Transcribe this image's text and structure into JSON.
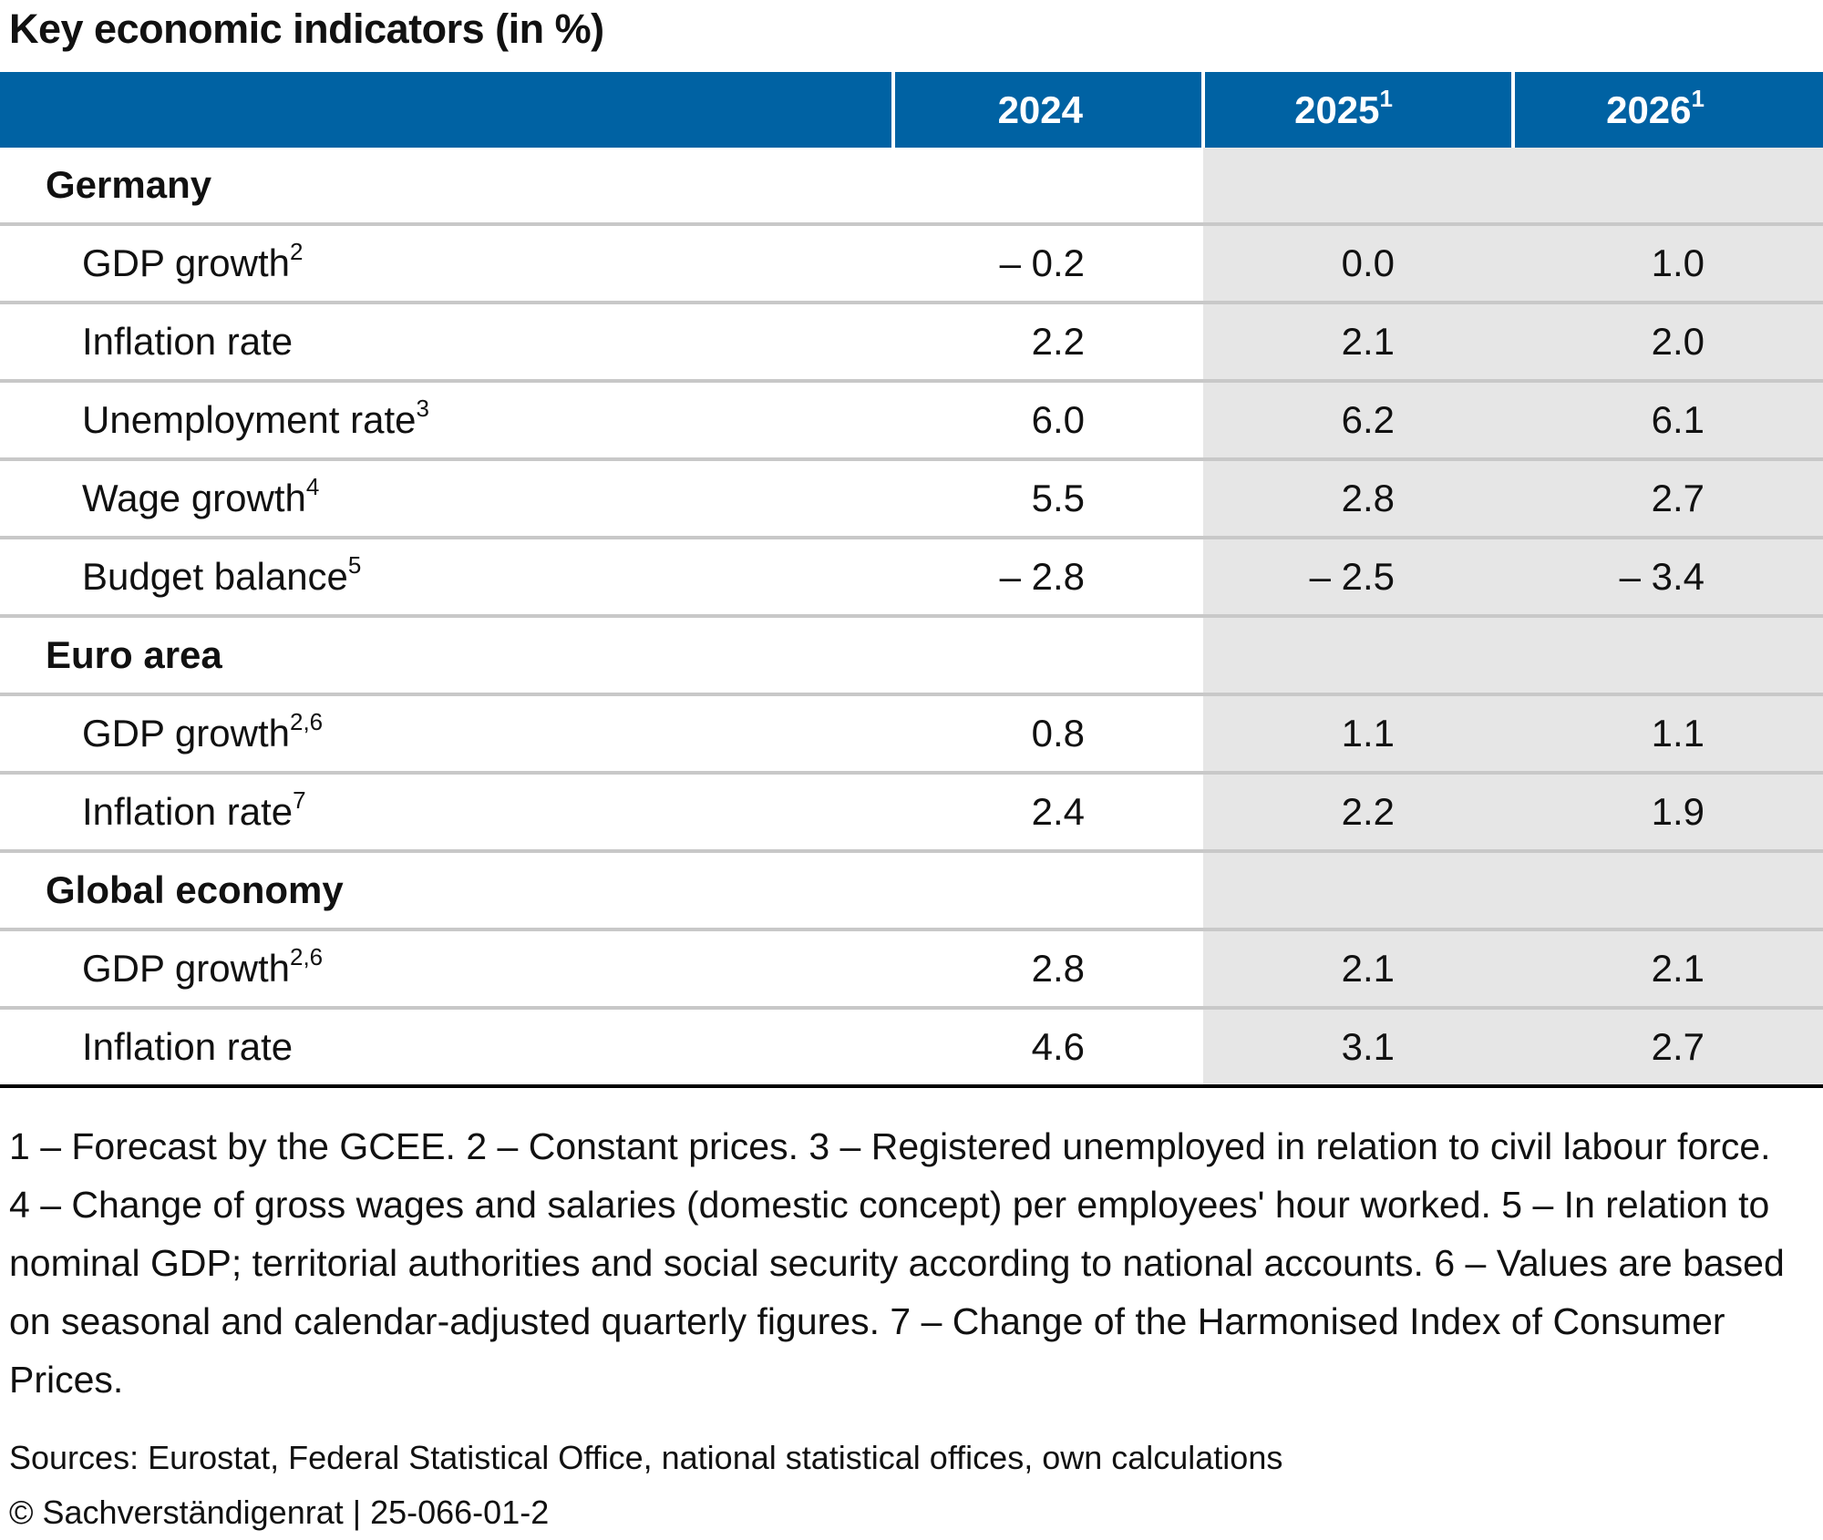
{
  "title": "Key economic indicators (in %)",
  "colors": {
    "header_bg": "#0062a3",
    "forecast_shade": "#e6e6e6"
  },
  "columns": [
    {
      "label": "2024",
      "sup": ""
    },
    {
      "label": "2025",
      "sup": "1"
    },
    {
      "label": "2026",
      "sup": "1"
    }
  ],
  "rows": [
    {
      "type": "group",
      "label": "Germany"
    },
    {
      "type": "item",
      "label": "GDP growth",
      "sup": "2",
      "values": [
        "– 0.2",
        "0.0",
        "1.0"
      ]
    },
    {
      "type": "item",
      "label": "Inflation rate",
      "sup": "",
      "values": [
        "2.2",
        "2.1",
        "2.0"
      ]
    },
    {
      "type": "item",
      "label": "Unemployment rate",
      "sup": "3",
      "values": [
        "6.0",
        "6.2",
        "6.1"
      ]
    },
    {
      "type": "item",
      "label": "Wage growth",
      "sup": "4",
      "values": [
        "5.5",
        "2.8",
        "2.7"
      ]
    },
    {
      "type": "item",
      "label": "Budget balance",
      "sup": "5",
      "values": [
        "– 2.8",
        "– 2.5",
        "– 3.4"
      ]
    },
    {
      "type": "group",
      "label": "Euro area"
    },
    {
      "type": "item",
      "label": "GDP growth",
      "sup": "2,6",
      "values": [
        "0.8",
        "1.1",
        "1.1"
      ]
    },
    {
      "type": "item",
      "label": "Inflation rate",
      "sup": "7",
      "values": [
        "2.4",
        "2.2",
        "1.9"
      ]
    },
    {
      "type": "group",
      "label": "Global economy"
    },
    {
      "type": "item",
      "label": "GDP growth",
      "sup": "2,6",
      "values": [
        "2.8",
        "2.1",
        "2.1"
      ]
    },
    {
      "type": "item",
      "label": "Inflation rate",
      "sup": "",
      "values": [
        "4.6",
        "3.1",
        "2.7"
      ]
    }
  ],
  "footnotes": "1 – Forecast by the GCEE.  2 – Constant prices.  3 – Registered unemployed in relation to civil labour force.  4 – Change of gross wages and salaries (domestic concept) per employees' hour worked.  5 – In relation to nominal GDP; territorial authorities and social security according to national accounts.  6 – Values are based on seasonal and calendar-adjusted quarterly figures.  7 – Change of the Harmonised Index of Consumer Prices.",
  "sources": "Sources: Eurostat, Federal Statistical Office, national statistical offices, own calculations",
  "copyright": "© Sachverständigenrat | 25-066-01-2"
}
